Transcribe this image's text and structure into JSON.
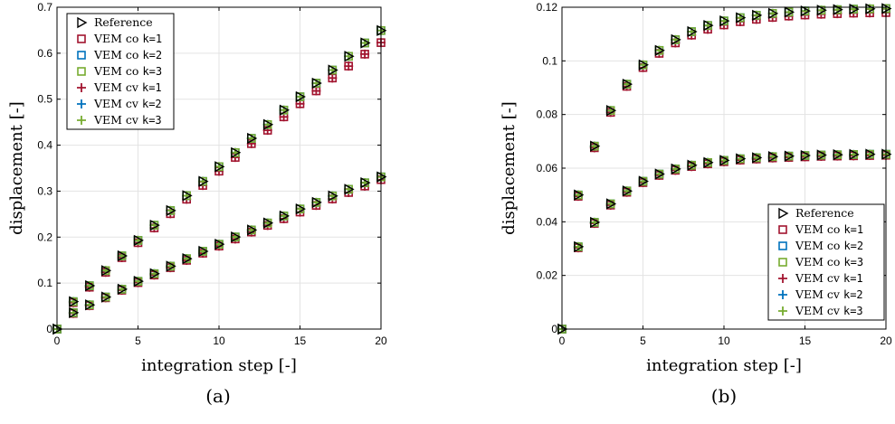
{
  "chart_data": [
    {
      "type": "scatter",
      "caption": "(a)",
      "xlabel": "integration step [-]",
      "ylabel": "displacement [-]",
      "xlim": [
        0,
        20
      ],
      "ylim": [
        0,
        0.7
      ],
      "xticks": [
        0,
        5,
        10,
        15,
        20
      ],
      "yticks": [
        0,
        0.1,
        0.2,
        0.3,
        0.4,
        0.5,
        0.6,
        0.7
      ],
      "xtick_labels": [
        "0",
        "5",
        "10",
        "15",
        "20"
      ],
      "ytick_labels": [
        "0",
        "0.1",
        "0.2",
        "0.3",
        "0.4",
        "0.5",
        "0.6",
        "0.7"
      ],
      "grid": true,
      "legend_position": "top-left",
      "legend": [
        {
          "marker": "triangle-right",
          "color": "#000000",
          "label": "Reference",
          "suffix": ""
        },
        {
          "marker": "square",
          "color": "#a2142f",
          "label": "VEM co ",
          "suffix": "k=1"
        },
        {
          "marker": "square",
          "color": "#0072bd",
          "label": "VEM co ",
          "suffix": "k=2"
        },
        {
          "marker": "square",
          "color": "#77ac30",
          "label": "VEM co ",
          "suffix": "k=3"
        },
        {
          "marker": "plus",
          "color": "#a2142f",
          "label": "VEM cv ",
          "suffix": "k=1"
        },
        {
          "marker": "plus",
          "color": "#0072bd",
          "label": "VEM cv ",
          "suffix": "k=2"
        },
        {
          "marker": "plus",
          "color": "#77ac30",
          "label": "VEM cv ",
          "suffix": "k=3"
        }
      ],
      "x": [
        0,
        1,
        2,
        3,
        4,
        5,
        6,
        7,
        8,
        9,
        10,
        11,
        12,
        13,
        14,
        15,
        16,
        17,
        18,
        19,
        20
      ],
      "groups": [
        {
          "reference": [
            0,
            0.0597,
            0.0943,
            0.1272,
            0.1593,
            0.1929,
            0.2259,
            0.2578,
            0.2902,
            0.3212,
            0.3533,
            0.3838,
            0.4148,
            0.4448,
            0.4763,
            0.5053,
            0.5348,
            0.5633,
            0.5933,
            0.6223,
            0.6493
          ],
          "k1": [
            0,
            0.0575,
            0.091,
            0.1235,
            0.1553,
            0.1879,
            0.22,
            0.251,
            0.2824,
            0.3124,
            0.3434,
            0.3733,
            0.4033,
            0.4324,
            0.4615,
            0.49,
            0.518,
            0.546,
            0.572,
            0.598,
            0.623
          ],
          "k23": [
            0,
            0.0597,
            0.0943,
            0.1272,
            0.1593,
            0.1929,
            0.2259,
            0.2578,
            0.2902,
            0.3212,
            0.3533,
            0.3838,
            0.4148,
            0.4448,
            0.4763,
            0.5053,
            0.5348,
            0.5633,
            0.5933,
            0.6223,
            0.6493
          ]
        },
        {
          "reference": [
            0,
            0.0357,
            0.0527,
            0.0697,
            0.0867,
            0.1039,
            0.1205,
            0.1368,
            0.1531,
            0.1692,
            0.1845,
            0.2004,
            0.2155,
            0.2307,
            0.246,
            0.2612,
            0.2755,
            0.2896,
            0.304,
            0.3182,
            0.331
          ],
          "k1": [
            0,
            0.034,
            0.051,
            0.068,
            0.0845,
            0.101,
            0.1175,
            0.1335,
            0.1495,
            0.165,
            0.1805,
            0.196,
            0.211,
            0.2255,
            0.24,
            0.2545,
            0.269,
            0.283,
            0.297,
            0.311,
            0.325
          ],
          "k23": [
            0,
            0.0357,
            0.0527,
            0.0697,
            0.0867,
            0.1039,
            0.1205,
            0.1368,
            0.1531,
            0.1692,
            0.1845,
            0.2004,
            0.2155,
            0.2307,
            0.246,
            0.2612,
            0.2755,
            0.2896,
            0.304,
            0.3182,
            0.331
          ]
        }
      ]
    },
    {
      "type": "scatter",
      "caption": "(b)",
      "xlabel": "integration step [-]",
      "ylabel": "displacement [-]",
      "xlim": [
        0,
        20
      ],
      "ylim": [
        0,
        0.12
      ],
      "xticks": [
        0,
        5,
        10,
        15,
        20
      ],
      "yticks": [
        0,
        0.02,
        0.04,
        0.06,
        0.08,
        0.1,
        0.12
      ],
      "xtick_labels": [
        "0",
        "5",
        "10",
        "15",
        "20"
      ],
      "ytick_labels": [
        "0",
        "0.02",
        "0.04",
        "0.06",
        "0.08",
        "0.1",
        "0.12"
      ],
      "grid": true,
      "legend_position": "bottom-right",
      "legend": [
        {
          "marker": "triangle-right",
          "color": "#000000",
          "label": "Reference",
          "suffix": ""
        },
        {
          "marker": "square",
          "color": "#a2142f",
          "label": "VEM co ",
          "suffix": "k=1"
        },
        {
          "marker": "square",
          "color": "#0072bd",
          "label": "VEM co ",
          "suffix": "k=2"
        },
        {
          "marker": "square",
          "color": "#77ac30",
          "label": "VEM co ",
          "suffix": "k=3"
        },
        {
          "marker": "plus",
          "color": "#a2142f",
          "label": "VEM cv ",
          "suffix": "k=1"
        },
        {
          "marker": "plus",
          "color": "#0072bd",
          "label": "VEM cv ",
          "suffix": "k=2"
        },
        {
          "marker": "plus",
          "color": "#77ac30",
          "label": "VEM cv ",
          "suffix": "k=3"
        }
      ],
      "x": [
        0,
        1,
        2,
        3,
        4,
        5,
        6,
        7,
        8,
        9,
        10,
        11,
        12,
        13,
        14,
        15,
        16,
        17,
        18,
        19,
        20
      ],
      "groups": [
        {
          "reference": [
            0,
            0.05,
            0.0682,
            0.0815,
            0.0913,
            0.0985,
            0.1039,
            0.1079,
            0.1109,
            0.1132,
            0.1149,
            0.1161,
            0.117,
            0.1177,
            0.1182,
            0.1186,
            0.1189,
            0.1191,
            0.1193,
            0.1194,
            0.1195
          ],
          "k1": [
            0,
            0.0495,
            0.0676,
            0.0808,
            0.0905,
            0.0975,
            0.1028,
            0.1067,
            0.1096,
            0.1118,
            0.1134,
            0.1146,
            0.1155,
            0.1162,
            0.1167,
            0.1171,
            0.1174,
            0.1176,
            0.1178,
            0.1179,
            0.118
          ],
          "k23": [
            0,
            0.05,
            0.0682,
            0.0815,
            0.0913,
            0.0985,
            0.1039,
            0.1079,
            0.1109,
            0.1132,
            0.1149,
            0.1161,
            0.117,
            0.1177,
            0.1182,
            0.1186,
            0.1189,
            0.1191,
            0.1193,
            0.1194,
            0.1195
          ]
        },
        {
          "reference": [
            0,
            0.0307,
            0.0398,
            0.0467,
            0.0515,
            0.0551,
            0.0578,
            0.0597,
            0.0611,
            0.0621,
            0.0629,
            0.0635,
            0.0639,
            0.0643,
            0.0645,
            0.0647,
            0.0649,
            0.065,
            0.0651,
            0.0652,
            0.0652
          ],
          "k1": [
            0,
            0.0303,
            0.0394,
            0.0462,
            0.051,
            0.0546,
            0.0573,
            0.0592,
            0.0606,
            0.0616,
            0.0624,
            0.063,
            0.0634,
            0.0638,
            0.064,
            0.0642,
            0.0644,
            0.0645,
            0.0646,
            0.0647,
            0.0648
          ],
          "k23": [
            0,
            0.0307,
            0.0398,
            0.0467,
            0.0515,
            0.0551,
            0.0578,
            0.0597,
            0.0611,
            0.0621,
            0.0629,
            0.0635,
            0.0639,
            0.0643,
            0.0645,
            0.0647,
            0.0649,
            0.065,
            0.0651,
            0.0652,
            0.0652
          ]
        }
      ]
    }
  ]
}
